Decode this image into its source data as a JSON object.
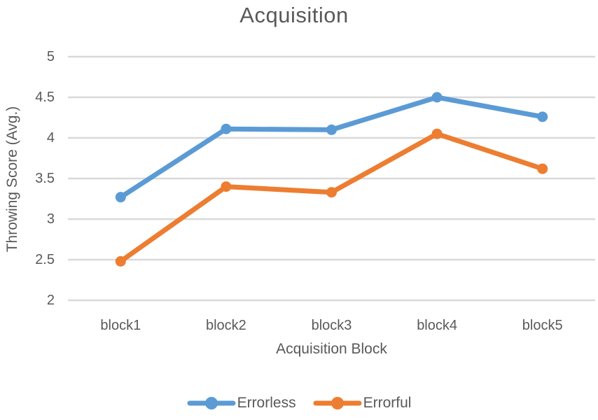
{
  "chart_data": {
    "type": "line",
    "title": "Acquisition",
    "xlabel": "Acquisition Block",
    "ylabel": "Throwing Score (Avg.)",
    "categories": [
      "block1",
      "block2",
      "block3",
      "block4",
      "block5"
    ],
    "series": [
      {
        "name": "Errorless",
        "color": "#5B9BD5",
        "values": [
          3.27,
          4.11,
          4.1,
          4.5,
          4.26
        ]
      },
      {
        "name": "Errorful",
        "color": "#ED7D31",
        "values": [
          2.48,
          3.4,
          3.33,
          4.05,
          3.62
        ]
      }
    ],
    "ylim": [
      2,
      5
    ],
    "yticks": [
      5,
      4.5,
      4,
      3.5,
      3,
      2.5,
      2
    ],
    "grid": true,
    "gridline_color": "#D9D9D9",
    "text_color": "#595959",
    "legend_position": "bottom"
  }
}
